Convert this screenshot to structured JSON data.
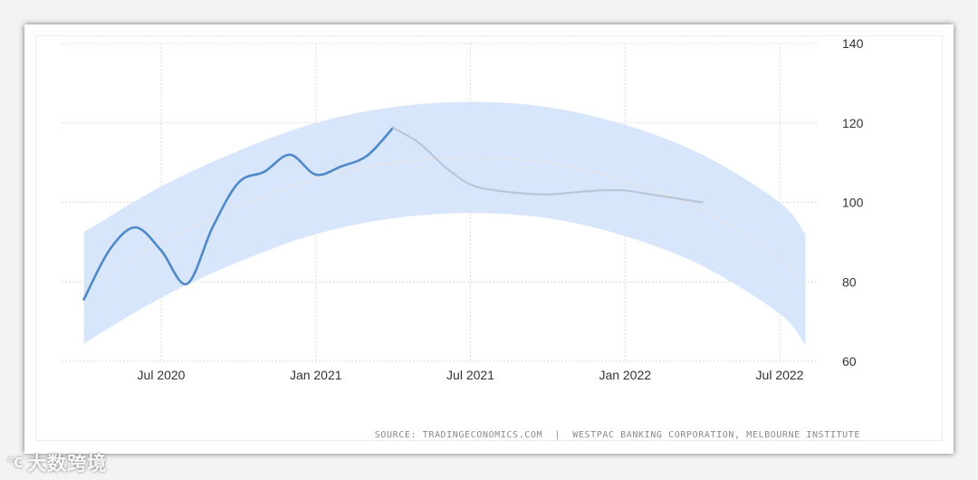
{
  "chart_data": {
    "type": "line",
    "title": "",
    "xlabel": "",
    "ylabel": "",
    "ylim": [
      60,
      140
    ],
    "y_ticks": [
      60,
      80,
      100,
      120,
      140
    ],
    "y_axis_position": "right",
    "x_ticks": [
      {
        "label": "Jul 2020",
        "date": "2020-07"
      },
      {
        "label": "Jan 2021",
        "date": "2021-01"
      },
      {
        "label": "Jul 2021",
        "date": "2021-07"
      },
      {
        "label": "Jan 2022",
        "date": "2022-01"
      },
      {
        "label": "Jul 2022",
        "date": "2022-07"
      }
    ],
    "grid": true,
    "series": [
      {
        "role": "actual",
        "color": "#4f89c7",
        "points": [
          {
            "x": "2020-04",
            "y": 75.6
          },
          {
            "x": "2020-05",
            "y": 88.1
          },
          {
            "x": "2020-06",
            "y": 93.7
          },
          {
            "x": "2020-07",
            "y": 87.9
          },
          {
            "x": "2020-08",
            "y": 79.5
          },
          {
            "x": "2020-09",
            "y": 93.8
          },
          {
            "x": "2020-10",
            "y": 105.0
          },
          {
            "x": "2020-11",
            "y": 107.7
          },
          {
            "x": "2020-12",
            "y": 112.0
          },
          {
            "x": "2021-01",
            "y": 107.0
          },
          {
            "x": "2021-02",
            "y": 109.1
          },
          {
            "x": "2021-03",
            "y": 111.8
          },
          {
            "x": "2021-04",
            "y": 118.8
          }
        ]
      },
      {
        "role": "forecast",
        "color": "#b8c7d8",
        "points": [
          {
            "x": "2021-04",
            "y": 118.8
          },
          {
            "x": "2021-05",
            "y": 115.0
          },
          {
            "x": "2021-06",
            "y": 109.0
          },
          {
            "x": "2021-07",
            "y": 104.5
          },
          {
            "x": "2021-08",
            "y": 103.0
          },
          {
            "x": "2021-09",
            "y": 102.3
          },
          {
            "x": "2021-10",
            "y": 102.0
          },
          {
            "x": "2021-11",
            "y": 102.5
          },
          {
            "x": "2021-12",
            "y": 103.0
          },
          {
            "x": "2022-01",
            "y": 103.0
          },
          {
            "x": "2022-02",
            "y": 102.0
          },
          {
            "x": "2022-03",
            "y": 101.0
          },
          {
            "x": "2022-04",
            "y": 100.0
          }
        ]
      }
    ],
    "trend_band": {
      "color": "#d8e6fb",
      "center_color": "#e3e3e3",
      "points": [
        {
          "x": "2020-04",
          "center": 78.5,
          "upper": 92.5,
          "lower": 64.5
        },
        {
          "x": "2020-07",
          "center": 90.0,
          "upper": 104.0,
          "lower": 76.0
        },
        {
          "x": "2020-10",
          "center": 99.0,
          "upper": 113.0,
          "lower": 85.0
        },
        {
          "x": "2021-01",
          "center": 106.0,
          "upper": 120.0,
          "lower": 92.0
        },
        {
          "x": "2021-04",
          "center": 110.0,
          "upper": 124.0,
          "lower": 96.0
        },
        {
          "x": "2021-07",
          "center": 111.3,
          "upper": 125.3,
          "lower": 97.3
        },
        {
          "x": "2021-10",
          "center": 110.0,
          "upper": 124.0,
          "lower": 96.0
        },
        {
          "x": "2022-01",
          "center": 105.5,
          "upper": 119.5,
          "lower": 91.5
        },
        {
          "x": "2022-04",
          "center": 98.0,
          "upper": 112.0,
          "lower": 84.0
        },
        {
          "x": "2022-07",
          "center": 86.0,
          "upper": 100.0,
          "lower": 72.0
        },
        {
          "x": "2022-08",
          "center": 78.0,
          "upper": 92.0,
          "lower": 64.0
        }
      ]
    }
  },
  "source_text": "SOURCE: TRADINGECONOMICS.COM  |  WESTPAC BANKING CORPORATION, MELBOURNE INSTITUTE",
  "watermark": {
    "logo": "℃",
    "text": "大数跨境"
  }
}
